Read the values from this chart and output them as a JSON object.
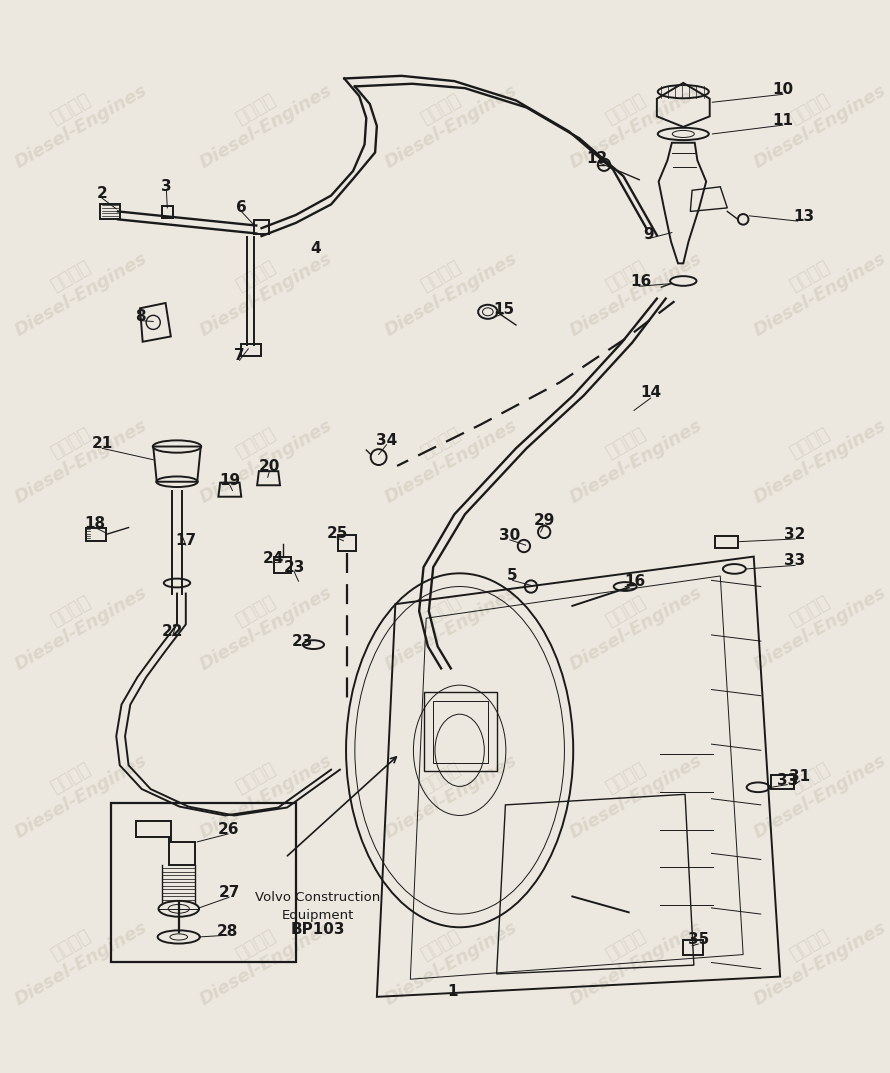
{
  "background_color": "#ece7df",
  "line_color": "#1a1a1a",
  "label_fontsize": 11,
  "footer_lines": [
    "Volvo Construction",
    "Equipment",
    "BP103"
  ]
}
